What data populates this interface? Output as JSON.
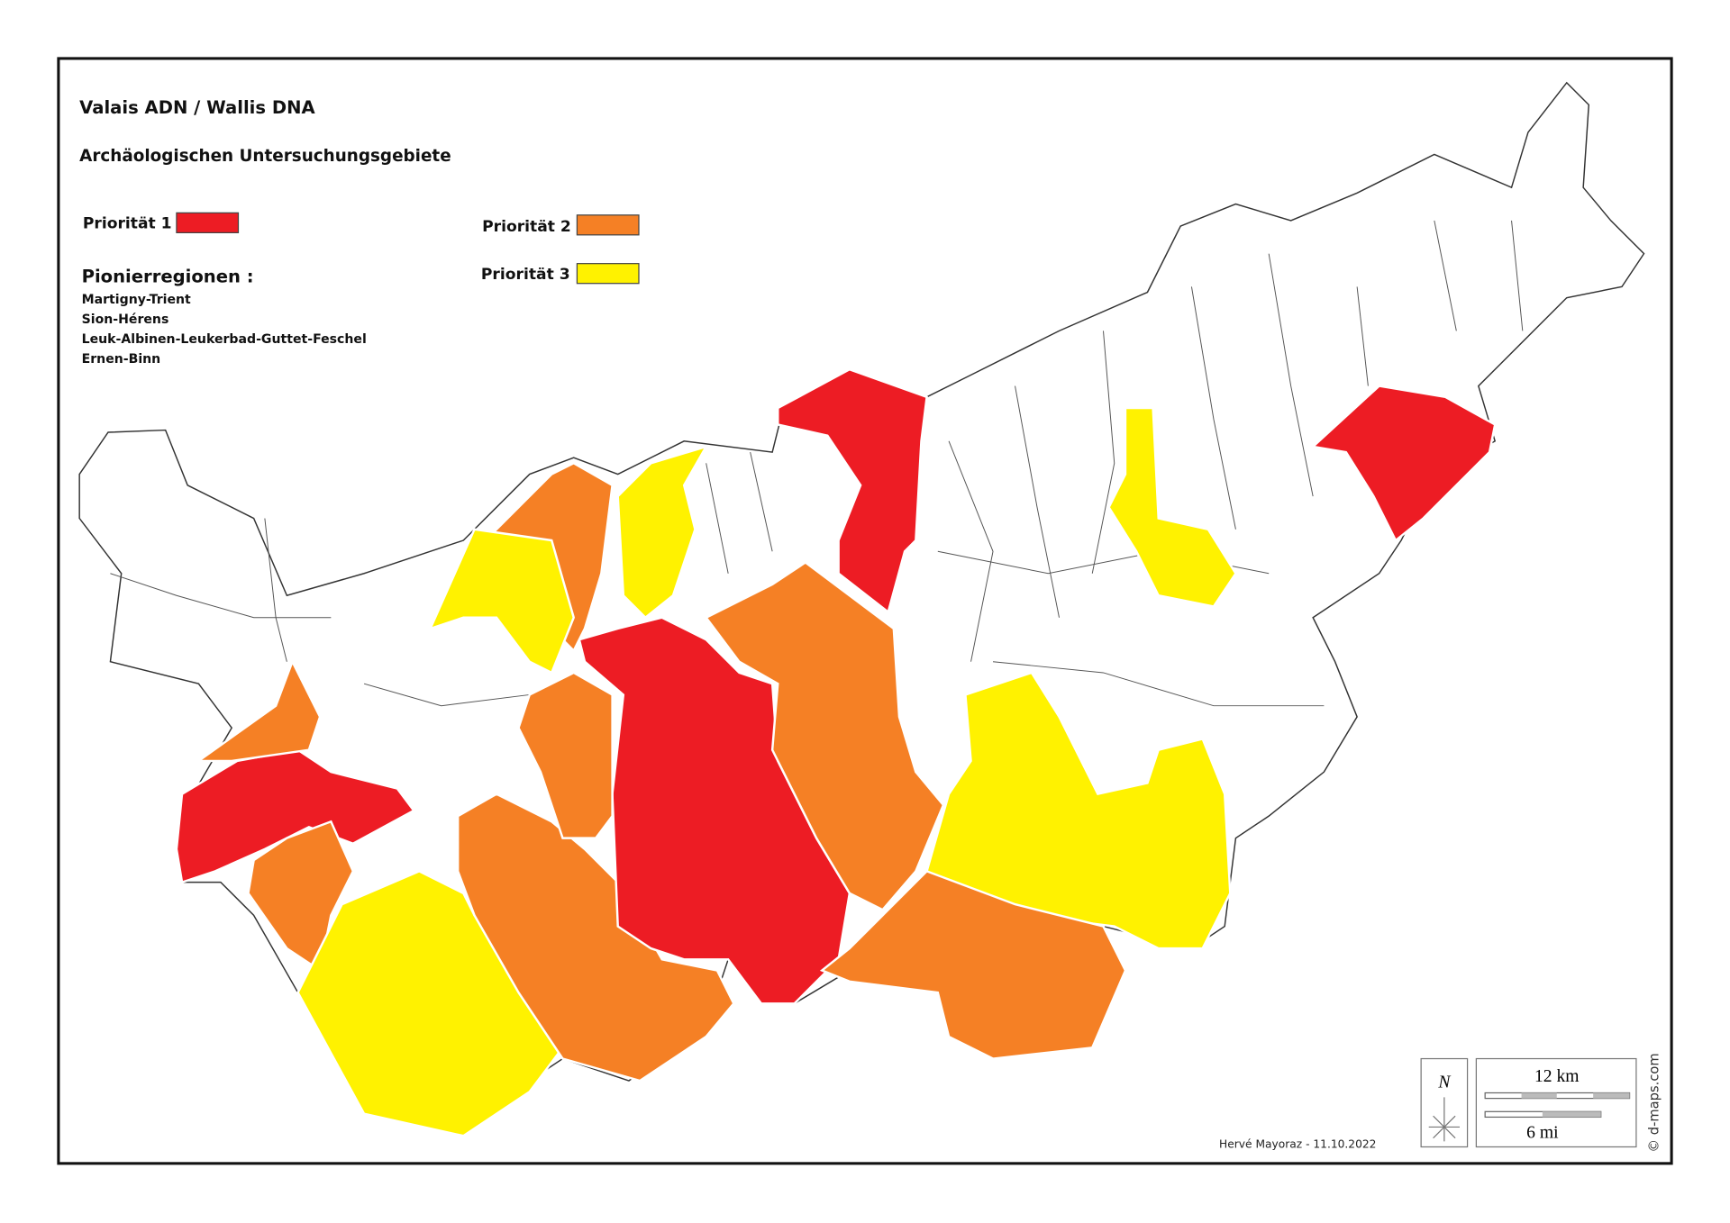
{
  "header": {
    "title": "Valais ADN / Wallis DNA",
    "subtitle": "Archäologischen Untersuchungsgebiete"
  },
  "legend": {
    "items": [
      {
        "label": "Priorität 1",
        "color": "#ed1c24"
      },
      {
        "label": "Priorität 2",
        "color": "#f58025"
      },
      {
        "label": "Priorität 3",
        "color": "#fff200"
      }
    ],
    "pioneer_heading": "Pionierregionen :",
    "pioneer_regions": [
      "Martigny-Trient",
      "Sion-Hérens",
      "Leuk-Albinen-Leukerbad-Guttet-Feschel",
      "Ernen-Binn"
    ]
  },
  "footer": {
    "author": "Hervé Mayoraz - 11.10.2022",
    "north": "N",
    "scale_km": "12 km",
    "scale_mi": "6 mi",
    "credit": "© d-maps.com"
  }
}
